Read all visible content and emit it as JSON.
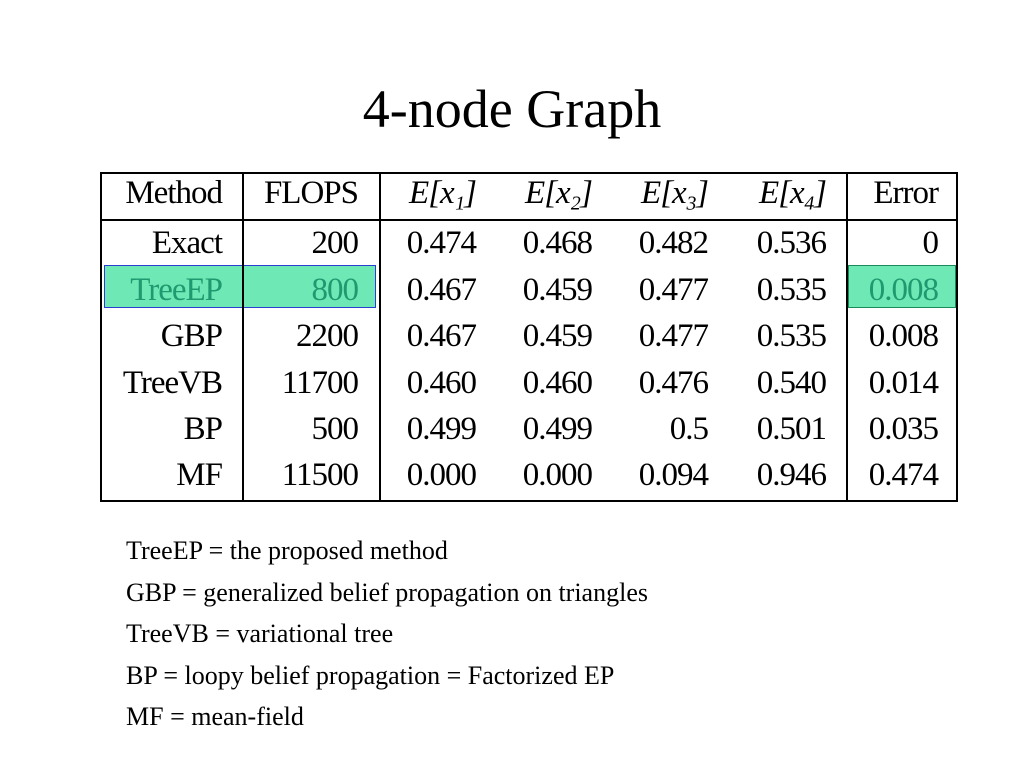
{
  "title": "4-node Graph",
  "table": {
    "header": [
      "Method",
      "FLOPS",
      "E[x₁]",
      "E[x₂]",
      "E[x₃]",
      "E[x₄]",
      "Error"
    ],
    "rows": [
      [
        "Exact",
        "200",
        "0.474",
        "0.468",
        "0.482",
        "0.536",
        "0"
      ],
      [
        "TreeEP",
        "800",
        "0.467",
        "0.459",
        "0.477",
        "0.535",
        "0.008"
      ],
      [
        "GBP",
        "2200",
        "0.467",
        "0.459",
        "0.477",
        "0.535",
        "0.008"
      ],
      [
        "TreeVB",
        "11700",
        "0.460",
        "0.460",
        "0.476",
        "0.540",
        "0.014"
      ],
      [
        "BP",
        "500",
        "0.499",
        "0.499",
        "0.5",
        "0.501",
        "0.035"
      ],
      [
        "MF",
        "11500",
        "0.000",
        "0.000",
        "0.094",
        "0.946",
        "0.474"
      ]
    ]
  },
  "notes": [
    "TreeEP = the proposed method",
    "GBP = generalized belief propagation on triangles",
    "TreeVB = variational tree",
    "BP = loopy belief propagation = Factorized EP",
    "MF = mean-field"
  ]
}
